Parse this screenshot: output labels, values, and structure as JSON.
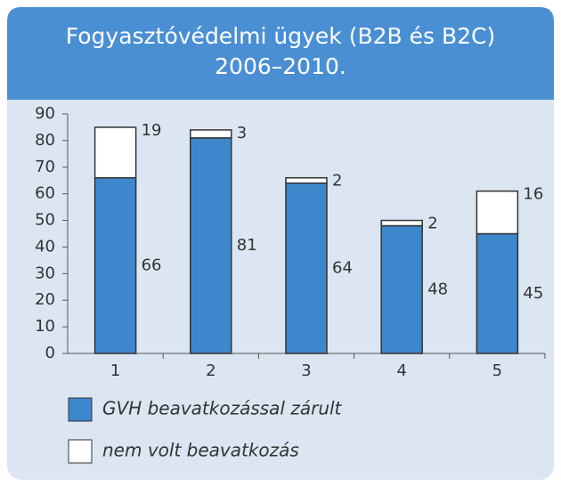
{
  "chart_data": {
    "type": "stacked_bar",
    "title": [
      "Fogyasztóvédelmi ügyek (B2B és B2C)",
      "2006–2010."
    ],
    "categories": [
      "1",
      "2",
      "3",
      "4",
      "5"
    ],
    "series": [
      {
        "name": "GVH beavatkozással zárult",
        "color": "#3f87cc",
        "values": [
          66,
          81,
          64,
          48,
          45
        ]
      },
      {
        "name": "nem volt beavatkozás",
        "color": "#ffffff",
        "values": [
          19,
          3,
          2,
          2,
          16
        ]
      }
    ],
    "ylim": [
      0,
      90
    ],
    "yticks": [
      0,
      10,
      20,
      30,
      40,
      50,
      60,
      70,
      80,
      90
    ]
  }
}
